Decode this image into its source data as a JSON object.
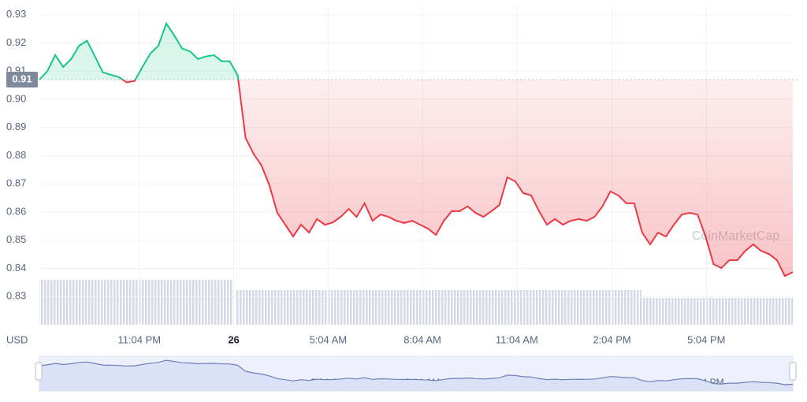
{
  "chart_data": {
    "type": "line",
    "currency_label": "USD",
    "watermark": "CoinMarketCap",
    "values": [
      0.907,
      0.91,
      0.9157,
      0.9115,
      0.9143,
      0.919,
      0.9208,
      0.9152,
      0.9096,
      0.9087,
      0.9079,
      0.906,
      0.9065,
      0.9115,
      0.9163,
      0.919,
      0.9269,
      0.9227,
      0.918,
      0.917,
      0.9143,
      0.9152,
      0.9157,
      0.9135,
      0.9135,
      0.9085,
      0.8863,
      0.8807,
      0.8765,
      0.8695,
      0.8597,
      0.8555,
      0.8513,
      0.8555,
      0.8527,
      0.8575,
      0.8555,
      0.8563,
      0.8583,
      0.8611,
      0.8583,
      0.8631,
      0.8569,
      0.8591,
      0.8583,
      0.8569,
      0.8561,
      0.8569,
      0.8555,
      0.8541,
      0.8519,
      0.8569,
      0.8603,
      0.8603,
      0.862,
      0.8597,
      0.8583,
      0.8603,
      0.8625,
      0.8723,
      0.8709,
      0.8667,
      0.8659,
      0.8603,
      0.8555,
      0.8575,
      0.8555,
      0.8569,
      0.8575,
      0.8569,
      0.8583,
      0.862,
      0.8673,
      0.8659,
      0.8631,
      0.8631,
      0.8527,
      0.8485,
      0.8527,
      0.8513,
      0.8555,
      0.8591,
      0.8597,
      0.8591,
      0.8513,
      0.8415,
      0.8401,
      0.8429,
      0.8429,
      0.8462,
      0.8485,
      0.8462,
      0.8451,
      0.8429,
      0.8373,
      0.8387
    ],
    "baseline": {
      "value": 0.907,
      "label": "0.91"
    },
    "up_color": "#16c784",
    "down_color": "#ea3943",
    "xlim": [
      0,
      95
    ],
    "xticks": [
      {
        "value": 12.6,
        "label": "11:04 PM"
      },
      {
        "value": 24.5,
        "label": "26"
      },
      {
        "value": 36.4,
        "label": "5:04 AM"
      },
      {
        "value": 48.3,
        "label": "8:04 AM"
      },
      {
        "value": 60.2,
        "label": "11:04 AM"
      },
      {
        "value": 72.2,
        "label": "2:04 PM"
      },
      {
        "value": 84.1,
        "label": "5:04 PM"
      }
    ],
    "ylim": [
      0.82,
      0.933
    ],
    "yticks": [
      0.83,
      0.84,
      0.85,
      0.86,
      0.87,
      0.88,
      0.89,
      {
        "value": 0.9,
        "label": "0.90"
      },
      0.91,
      0.92,
      0.93
    ],
    "grid": true
  }
}
